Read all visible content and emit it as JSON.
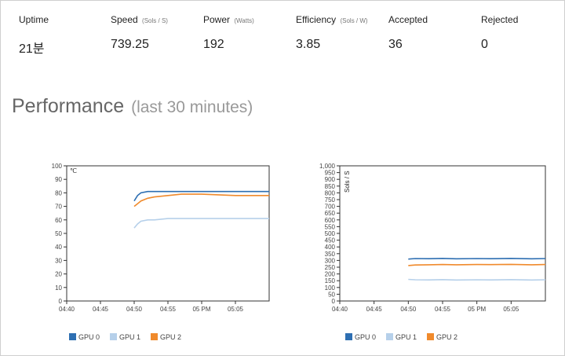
{
  "stats": {
    "uptime": {
      "label": "Uptime",
      "unit": "",
      "value": "21분"
    },
    "speed": {
      "label": "Speed",
      "unit": "(Sols / S)",
      "value": "739.25"
    },
    "power": {
      "label": "Power",
      "unit": "(Watts)",
      "value": "192"
    },
    "efficiency": {
      "label": "Efficiency",
      "unit": "(Sols / W)",
      "value": "3.85"
    },
    "accepted": {
      "label": "Accepted",
      "unit": "",
      "value": "36"
    },
    "rejected": {
      "label": "Rejected",
      "unit": "",
      "value": "0"
    }
  },
  "performance": {
    "title": "Performance",
    "subtitle": "(last 30 minutes)"
  },
  "colors": {
    "gpu0": "#2e6fb2",
    "gpu1": "#b6d0ea",
    "gpu2": "#f08a2c"
  },
  "chart_data": [
    {
      "type": "line",
      "title": "",
      "ylabel": "℃",
      "xlabel": "",
      "ylim": [
        0,
        100
      ],
      "yticks": [
        0,
        10,
        20,
        30,
        40,
        50,
        60,
        70,
        80,
        90,
        100
      ],
      "ytick_labels": [
        "0",
        "10",
        "20",
        "30",
        "40",
        "50",
        "60",
        "70",
        "80",
        "90",
        "100"
      ],
      "xlim": [
        0,
        30
      ],
      "xticks": [
        0,
        5,
        10,
        15,
        20,
        25
      ],
      "xtick_labels": [
        "04:40",
        "04:45",
        "04:50",
        "04:55",
        "05 PM",
        "05:05"
      ],
      "grid": false,
      "legend": "bottom-left",
      "series": [
        {
          "name": "GPU 0",
          "color": "#2e6fb2",
          "x": [
            10,
            10.5,
            11,
            12,
            13,
            15,
            17,
            20,
            25,
            30
          ],
          "y": [
            74,
            78,
            80,
            81,
            81,
            81,
            81,
            81,
            81,
            81
          ]
        },
        {
          "name": "GPU 1",
          "color": "#b6d0ea",
          "x": [
            10,
            10.5,
            11,
            12,
            13,
            15,
            17,
            20,
            25,
            30
          ],
          "y": [
            54,
            57,
            59,
            60,
            60,
            61,
            61,
            61,
            61,
            61
          ]
        },
        {
          "name": "GPU 2",
          "color": "#f08a2c",
          "x": [
            10,
            10.5,
            11,
            12,
            13,
            15,
            17,
            20,
            25,
            30
          ],
          "y": [
            70,
            72,
            74,
            76,
            77,
            78,
            79,
            79,
            78,
            78
          ]
        }
      ]
    },
    {
      "type": "line",
      "title": "",
      "ylabel": "Sols / S",
      "xlabel": "",
      "ylim": [
        0,
        1000
      ],
      "yticks": [
        0,
        50,
        100,
        150,
        200,
        250,
        300,
        350,
        400,
        450,
        500,
        550,
        600,
        650,
        700,
        750,
        800,
        850,
        900,
        950,
        1000
      ],
      "ytick_labels": [
        "0",
        "50",
        "100",
        "150",
        "200",
        "250",
        "300",
        "350",
        "400",
        "450",
        "500",
        "550",
        "600",
        "650",
        "700",
        "750",
        "800",
        "850",
        "900",
        "950",
        "1,000"
      ],
      "xlim": [
        0,
        30
      ],
      "xticks": [
        0,
        5,
        10,
        15,
        20,
        25
      ],
      "xtick_labels": [
        "04:40",
        "04:45",
        "04:50",
        "04:55",
        "05 PM",
        "05:05"
      ],
      "grid": false,
      "legend": "bottom-left",
      "series": [
        {
          "name": "GPU 0",
          "color": "#2e6fb2",
          "x": [
            10,
            11,
            13,
            15,
            17,
            20,
            22,
            25,
            28,
            30
          ],
          "y": [
            310,
            314,
            313,
            315,
            312,
            314,
            313,
            315,
            312,
            314
          ]
        },
        {
          "name": "GPU 1",
          "color": "#b6d0ea",
          "x": [
            10,
            11,
            13,
            15,
            17,
            20,
            22,
            25,
            28,
            30
          ],
          "y": [
            160,
            157,
            156,
            158,
            155,
            157,
            156,
            158,
            155,
            157
          ]
        },
        {
          "name": "GPU 2",
          "color": "#f08a2c",
          "x": [
            10,
            11,
            13,
            15,
            17,
            20,
            22,
            25,
            28,
            30
          ],
          "y": [
            262,
            266,
            268,
            270,
            268,
            270,
            269,
            271,
            268,
            270
          ]
        }
      ]
    }
  ]
}
